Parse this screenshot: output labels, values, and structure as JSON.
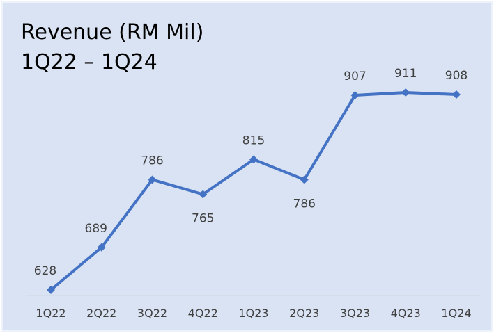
{
  "chart_data": {
    "type": "line",
    "title": "Revenue (RM Mil)",
    "subtitle": "1Q22 – 1Q24",
    "categories": [
      "1Q22",
      "2Q22",
      "3Q22",
      "4Q22",
      "1Q23",
      "2Q23",
      "3Q23",
      "4Q23",
      "1Q24"
    ],
    "values": [
      628,
      689,
      786,
      765,
      815,
      786,
      907,
      911,
      908
    ],
    "color": "#4472c4"
  }
}
